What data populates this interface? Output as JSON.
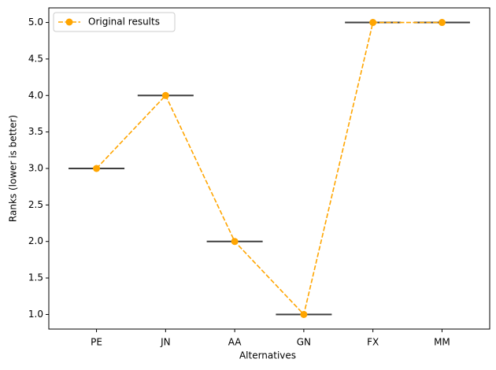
{
  "chart_data": {
    "type": "line",
    "xlabel": "Alternatives",
    "ylabel": "Ranks (lower is better)",
    "categories": [
      "PE",
      "JN",
      "AA",
      "GN",
      "FX",
      "MM"
    ],
    "series": [
      {
        "name": "Original results",
        "color": "#ffa500",
        "values": [
          3,
          4,
          2,
          1,
          5,
          5
        ]
      }
    ],
    "box_color": "#3f3f3f",
    "ylim": [
      0.8,
      5.2
    ],
    "yticks": [
      {
        "value": 1,
        "label": "1.0"
      },
      {
        "value": 1.5,
        "label": "1.5"
      },
      {
        "value": 2,
        "label": "2.0"
      },
      {
        "value": 2.5,
        "label": "2.5"
      },
      {
        "value": 3,
        "label": "3.0"
      },
      {
        "value": 3.5,
        "label": "3.5"
      },
      {
        "value": 4,
        "label": "4.0"
      },
      {
        "value": 4.5,
        "label": "4.5"
      },
      {
        "value": 5,
        "label": "5.0"
      }
    ],
    "grid": false,
    "legend": "upper left"
  }
}
